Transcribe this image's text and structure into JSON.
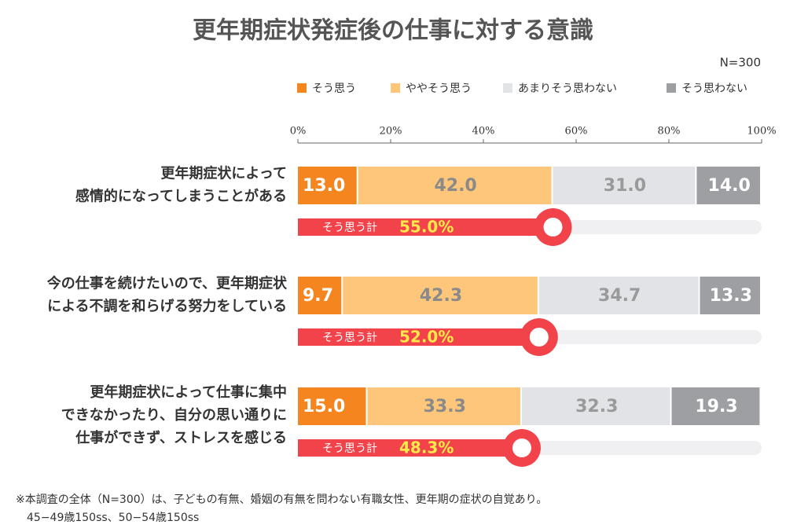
{
  "chart_data": {
    "type": "bar",
    "title": "更年期症状発症後の仕事に対する意識",
    "sample": "N=300",
    "categories": [
      [
        "更年期症状によって",
        "感情的になってしまうことがある"
      ],
      [
        "今の仕事を続けたいので、更年期症状",
        "による不調を和らげる努力をしている"
      ],
      [
        "更年期症状によって仕事に集中",
        "できなかったり、自分の思い通りに",
        "仕事ができず、ストレスを感じる"
      ]
    ],
    "series": [
      {
        "name": "そう思う",
        "color": "#f5861f",
        "label_color": "#ffffff",
        "values": [
          13.0,
          9.7,
          15.0
        ],
        "value_labels": [
          "13.0",
          "9.7",
          "15.0"
        ]
      },
      {
        "name": "ややそう思う",
        "color": "#fdc67a",
        "label_color": "#8a8a8a",
        "values": [
          42.0,
          42.3,
          33.3
        ],
        "value_labels": [
          "42.0",
          "42.3",
          "33.3"
        ]
      },
      {
        "name": "あまりそう思わない",
        "color": "#e2e3e7",
        "label_color": "#9a9a9a",
        "values": [
          31.0,
          34.7,
          32.3
        ],
        "value_labels": [
          "31.0",
          "34.7",
          "32.3"
        ]
      },
      {
        "name": "そう思わない",
        "color": "#9e9fa3",
        "label_color": "#ffffff",
        "values": [
          14.0,
          13.3,
          19.3
        ],
        "value_labels": [
          "14.0",
          "13.3",
          "19.3"
        ]
      }
    ],
    "total": {
      "name": "そう思う計",
      "color": "#f2434b",
      "label_color": "#ffea4a",
      "values": [
        55.0,
        52.0,
        48.3
      ],
      "value_labels": [
        "55.0%",
        "52.0%",
        "48.3%"
      ]
    },
    "xlim": [
      0,
      100
    ],
    "xticks": [
      {
        "value": 0,
        "label": "0%"
      },
      {
        "value": 20,
        "label": "20%"
      },
      {
        "value": 40,
        "label": "40%"
      },
      {
        "value": 60,
        "label": "60%"
      },
      {
        "value": 80,
        "label": "80%"
      },
      {
        "value": 100,
        "label": "100%"
      }
    ],
    "footnote": [
      "※本調査の全体（N=300）は、子どもの有無、婚姻の有無を問わない有職女性、更年期の症状の自覚あり。",
      "45−49歳150ss、50−54歳150ss"
    ]
  }
}
